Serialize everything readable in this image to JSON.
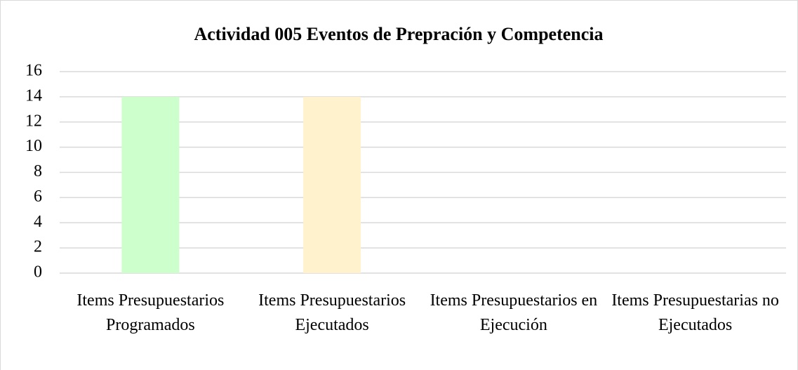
{
  "chart_data": {
    "type": "bar",
    "title": "Actividad 005 Eventos de Prepración y Competencia",
    "categories": [
      "Items Presupuestarios Programados",
      "Items Presupuestarios Ejecutados",
      "Items Presupuestarios en Ejecución",
      "Items Presupuestarias no Ejecutados"
    ],
    "values": [
      14,
      14,
      0,
      0
    ],
    "colors": [
      "#ccffcc",
      "#fff2cc",
      "#cce5ff",
      "#ffcccc"
    ],
    "ylim": [
      0,
      16
    ],
    "yticks": [
      0,
      2,
      4,
      6,
      8,
      10,
      12,
      14,
      16
    ],
    "grid": true
  }
}
